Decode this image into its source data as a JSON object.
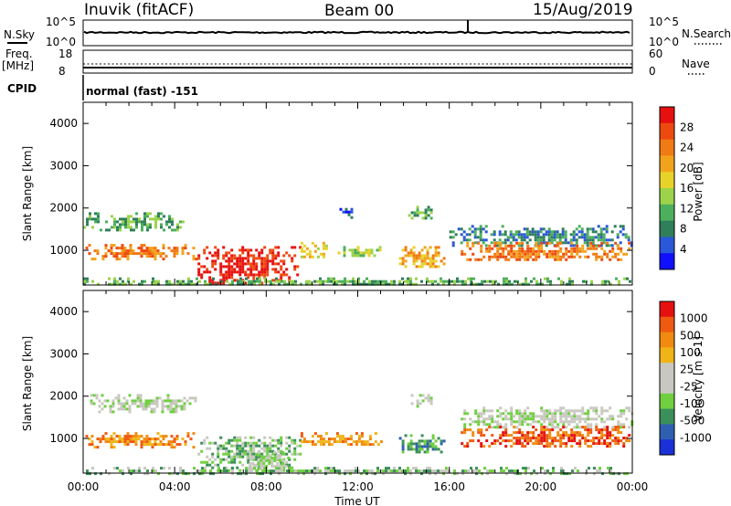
{
  "header": {
    "station": "Inuvik (fitACF)",
    "beam": "Beam 00",
    "date": "15/Aug/2019"
  },
  "strip_panels": {
    "nsky_label": "N.Sky",
    "nsky_ticks": [
      "10^5",
      "10^0"
    ],
    "nsearch_label": "N.Search",
    "nsearch_ticks": [
      "10^5",
      "10^0"
    ],
    "freq_label": "Freq.",
    "freq_unit": "[MHz]",
    "freq_ticks": [
      "18",
      "8"
    ],
    "nave_label": "Nave",
    "nave_ticks": [
      "60",
      "0"
    ],
    "cpid_label": "CPID",
    "cpid_value": "normal (fast) -151"
  },
  "chart_data": [
    {
      "type": "heatmap",
      "name": "power",
      "ylabel": "Slant Range [km]",
      "ylim": [
        180,
        4500
      ],
      "yticks": [
        1000,
        2000,
        3000,
        4000
      ],
      "xlim": [
        0,
        24
      ],
      "xticks": [
        "00:00",
        "04:00",
        "08:00",
        "12:00",
        "16:00",
        "20:00",
        "00:00"
      ],
      "colorbar": {
        "label": "Power [dB]",
        "ticks": [
          "28",
          "24",
          "20",
          "16",
          "12",
          "8",
          "4"
        ],
        "colors": [
          "#1010ff",
          "#2a58d8",
          "#2f7f5a",
          "#4caf5c",
          "#9cd34b",
          "#e8d22a",
          "#f2a31c",
          "#f07a14",
          "#ee4a10",
          "#e61010"
        ]
      },
      "echo_regions": [
        {
          "t0": 0.0,
          "t1": 4.4,
          "r0": 1450,
          "r1": 1900,
          "level": 3
        },
        {
          "t0": 0.1,
          "t1": 5.0,
          "r0": 820,
          "r1": 1150,
          "level": 7
        },
        {
          "t0": 5.0,
          "t1": 9.5,
          "r0": 200,
          "r1": 1100,
          "level": 9
        },
        {
          "t0": 9.5,
          "t1": 10.6,
          "r0": 850,
          "r1": 1200,
          "level": 5
        },
        {
          "t0": 11.0,
          "t1": 13.2,
          "r0": 850,
          "r1": 1100,
          "level": 4
        },
        {
          "t0": 13.8,
          "t1": 15.8,
          "r0": 600,
          "r1": 1100,
          "level": 6
        },
        {
          "t0": 14.2,
          "t1": 15.2,
          "r0": 1750,
          "r1": 2050,
          "level": 3
        },
        {
          "t0": 16.0,
          "t1": 24.0,
          "r0": 1100,
          "r1": 1600,
          "level": 2
        },
        {
          "t0": 16.5,
          "t1": 24.0,
          "r0": 750,
          "r1": 1200,
          "level": 7
        },
        {
          "t0": 11.2,
          "t1": 11.8,
          "r0": 1800,
          "r1": 2000,
          "level": 1
        },
        {
          "t0": 0.0,
          "t1": 24.0,
          "r0": 180,
          "r1": 360,
          "level": 3
        }
      ]
    },
    {
      "type": "heatmap",
      "name": "velocity",
      "ylabel": "Slant Range [km]",
      "ylim": [
        180,
        4500
      ],
      "yticks": [
        1000,
        2000,
        3000,
        4000
      ],
      "xlim": [
        0,
        24
      ],
      "xticks": [
        "00:00",
        "04:00",
        "08:00",
        "12:00",
        "16:00",
        "20:00",
        "00:00"
      ],
      "xlabel": "Time UT",
      "colorbar": {
        "label": "Velocity [m s-1]",
        "ticks": [
          "1000",
          "500",
          "100",
          "25",
          "-25",
          "-100",
          "-500",
          "-1000"
        ],
        "colors": [
          "#1a30d8",
          "#2f5fb0",
          "#3b8f5a",
          "#6fcf3f",
          "#c8c8c0",
          "#c8c8c0",
          "#f0b418",
          "#f08a10",
          "#ef5a10",
          "#e61010"
        ]
      },
      "echo_regions": [
        {
          "t0": 0.3,
          "t1": 5.0,
          "r0": 1650,
          "r1": 2050,
          "level": 4
        },
        {
          "t0": 0.1,
          "t1": 5.0,
          "r0": 820,
          "r1": 1150,
          "level": 7
        },
        {
          "t0": 5.0,
          "t1": 9.5,
          "r0": 250,
          "r1": 1050,
          "level": 3
        },
        {
          "t0": 7.0,
          "t1": 9.0,
          "r0": 250,
          "r1": 700,
          "level": 4
        },
        {
          "t0": 9.5,
          "t1": 13.0,
          "r0": 850,
          "r1": 1150,
          "level": 7
        },
        {
          "t0": 13.8,
          "t1": 15.8,
          "r0": 650,
          "r1": 1100,
          "level": 2
        },
        {
          "t0": 14.2,
          "t1": 15.2,
          "r0": 1750,
          "r1": 2050,
          "level": 4
        },
        {
          "t0": 16.5,
          "t1": 24.0,
          "r0": 1250,
          "r1": 1750,
          "level": 4
        },
        {
          "t0": 16.5,
          "t1": 24.0,
          "r0": 800,
          "r1": 1300,
          "level": 8
        },
        {
          "t0": 0.0,
          "t1": 24.0,
          "r0": 180,
          "r1": 330,
          "level": 3
        }
      ]
    }
  ]
}
